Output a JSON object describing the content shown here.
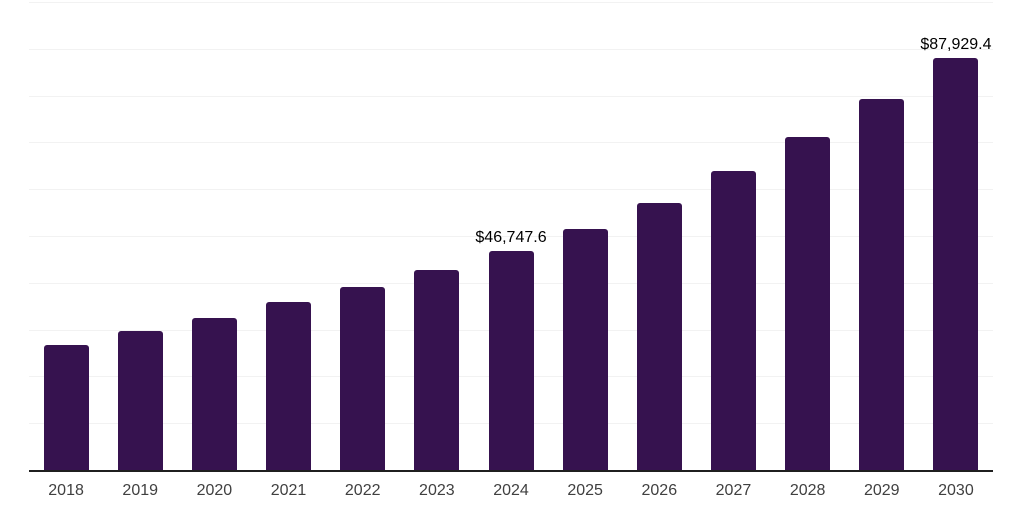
{
  "chart_data": {
    "type": "bar",
    "title": "",
    "xlabel": "",
    "ylabel": "",
    "categories": [
      "2018",
      "2019",
      "2020",
      "2021",
      "2022",
      "2023",
      "2024",
      "2025",
      "2026",
      "2027",
      "2028",
      "2029",
      "2030"
    ],
    "values": [
      26700,
      29700,
      32500,
      35900,
      39100,
      42700,
      46747.6,
      51500,
      57000,
      63900,
      71100,
      79300,
      87929.4
    ],
    "bar_labels": {
      "2024": "$46,747.6",
      "2030": "$87,929.4"
    },
    "ylim": [
      0,
      100000
    ],
    "grid_step": 10000,
    "grid": "horizontal gridlines only, no y-axis tick labels",
    "legend": "none",
    "colors": {
      "bar": "#36124F",
      "gridline": "#f2f2f2",
      "axis_line": "#1f1f1f",
      "tick_label": "#404040",
      "data_label": "#000000",
      "background": "#ffffff"
    }
  }
}
